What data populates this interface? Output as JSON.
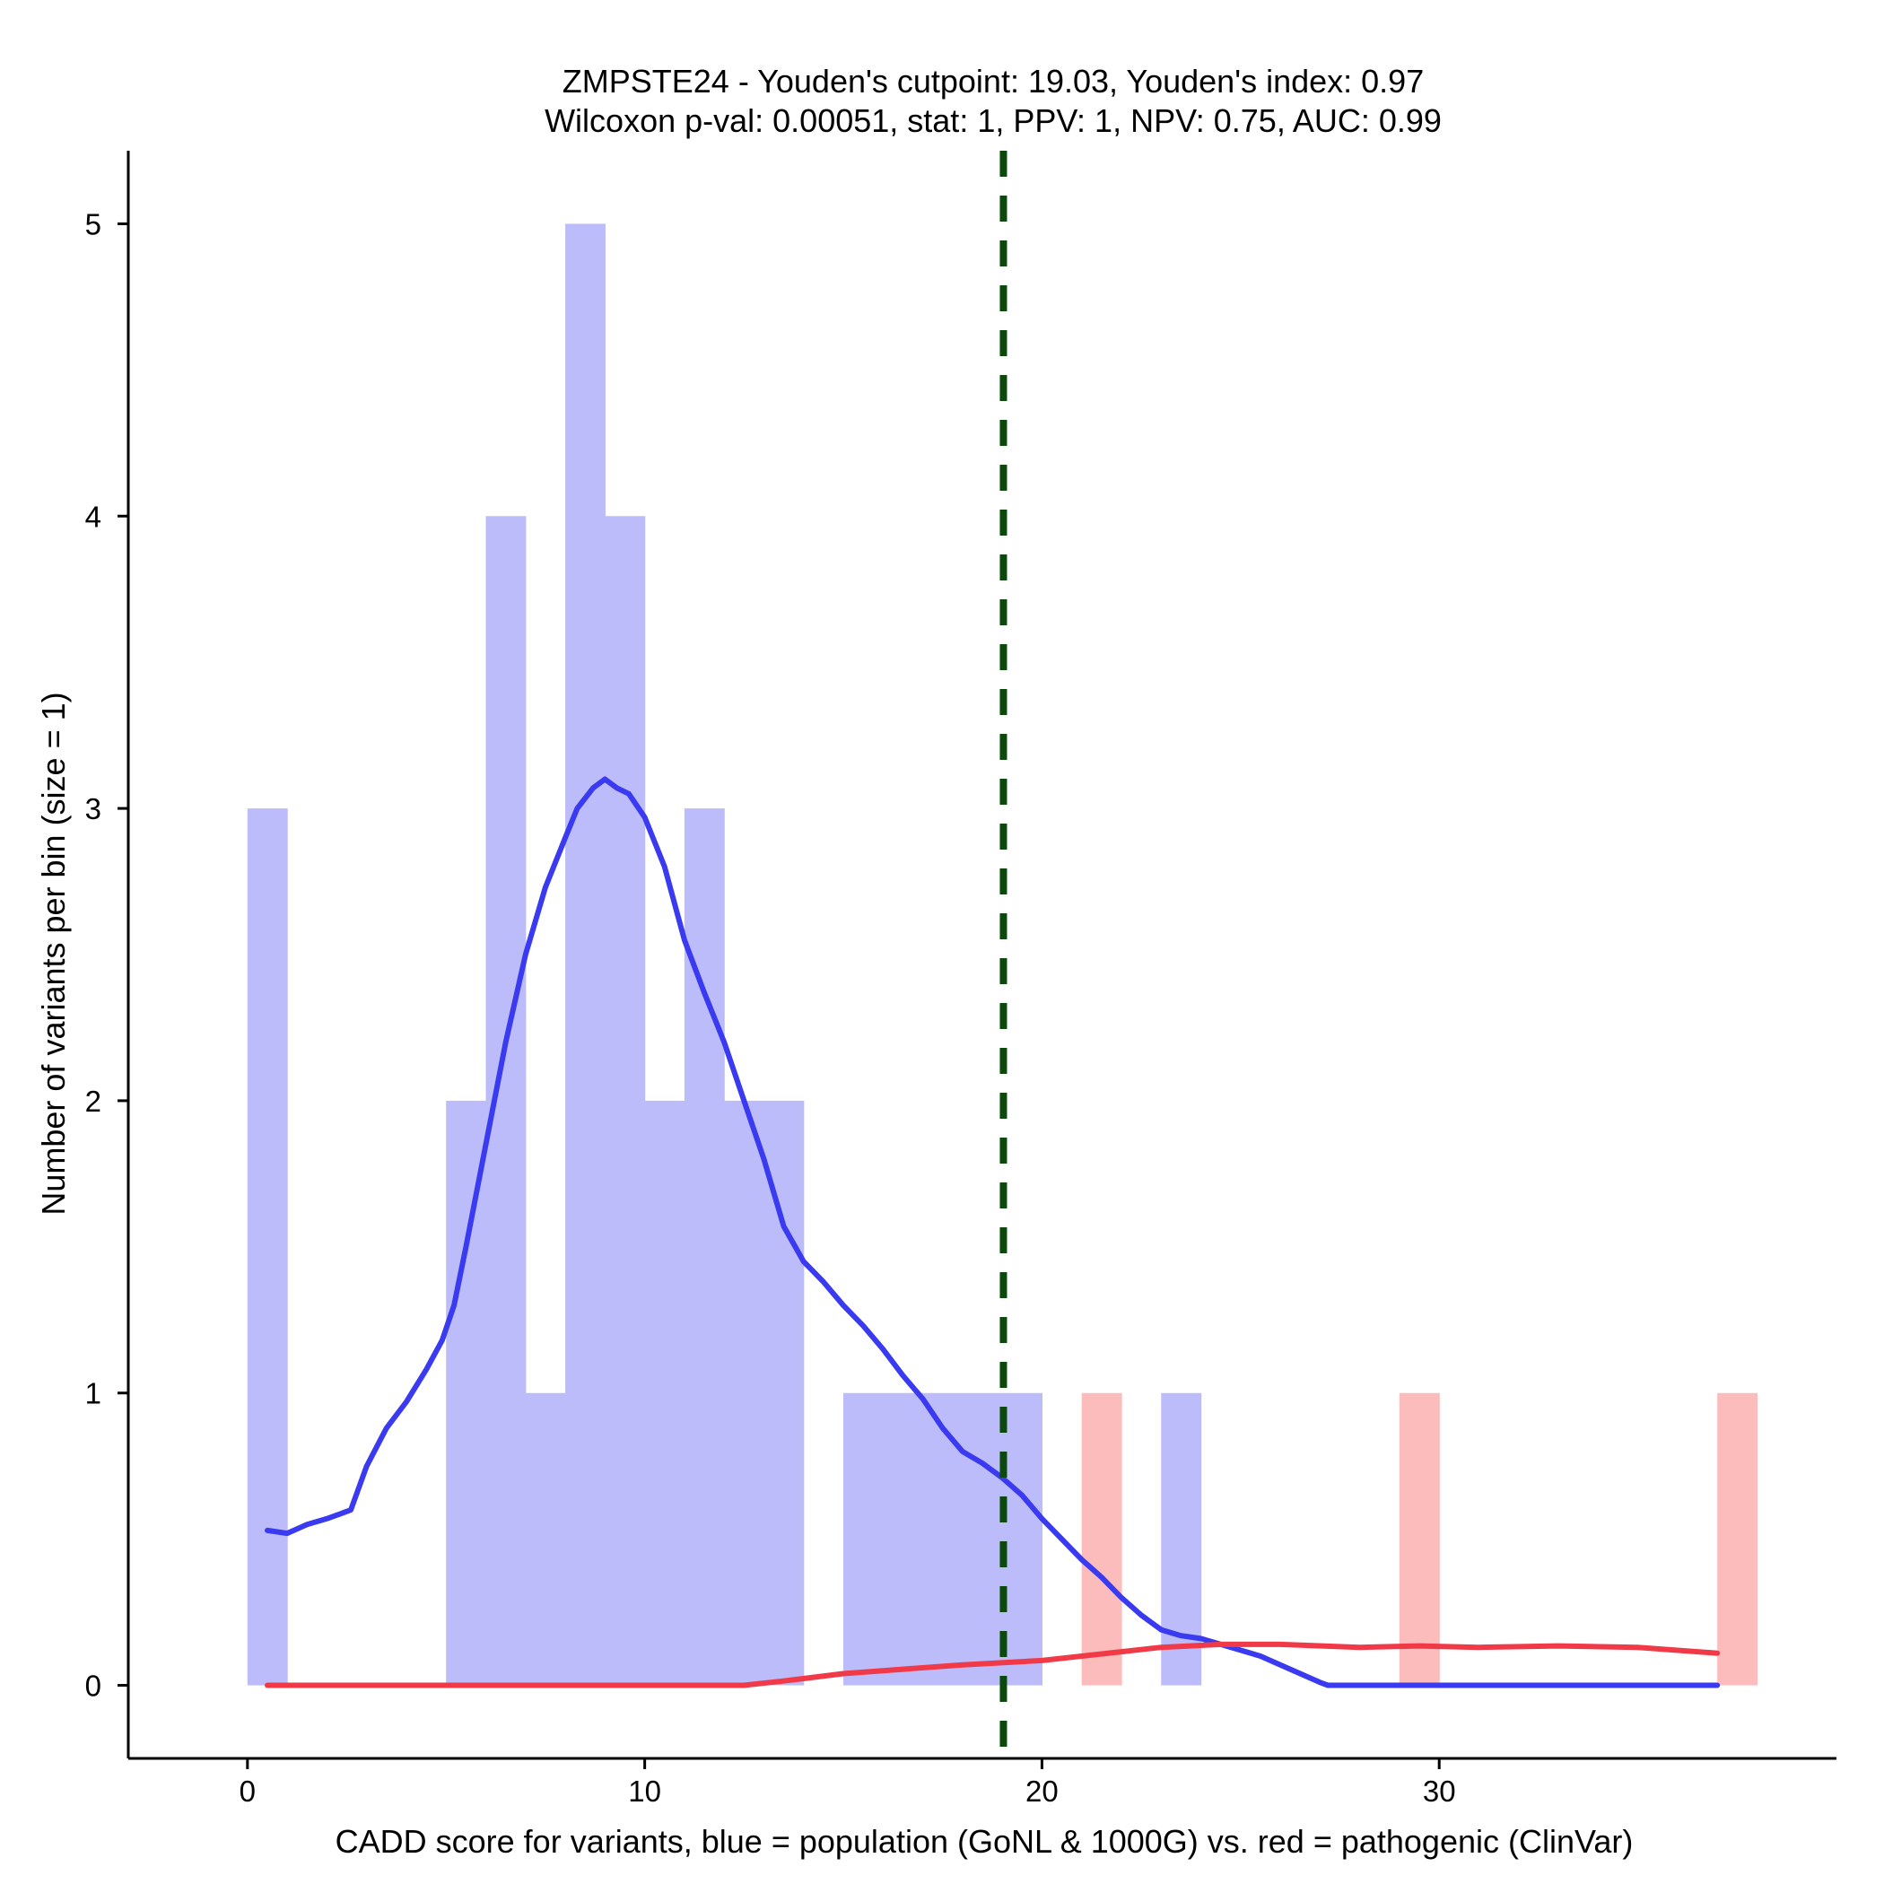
{
  "chart_data": {
    "type": "bar",
    "title_line1": "ZMPSTE24 - Youden's cutpoint: 19.03, Youden's index: 0.97",
    "title_line2": "Wilcoxon p-val: 0.00051, stat: 1, PPV: 1, NPV: 0.75, AUC: 0.99",
    "xlabel": "CADD score for variants, blue = population (GoNL & 1000G) vs. red = pathogenic (ClinVar)",
    "ylabel": "Number of variants per bin (size = 1)",
    "xlim": [
      -3,
      40
    ],
    "ylim": [
      -0.25,
      5.25
    ],
    "x_ticks": [
      0,
      10,
      20,
      30
    ],
    "x_tick_labels": [
      "0",
      "10",
      "20",
      "30"
    ],
    "y_ticks": [
      0,
      1,
      2,
      3,
      4,
      5
    ],
    "y_tick_labels": [
      "0",
      "1",
      "2",
      "3",
      "4",
      "5"
    ],
    "bin_width": 1,
    "colors": {
      "population_bar": "#bcbcfb",
      "pathogenic_bar": "#fcbcbc",
      "population_curve": "#3a3af0",
      "pathogenic_curve": "#f03a48",
      "cutpoint": "#0b4a0b"
    },
    "series": [
      {
        "name": "population",
        "bins": [
          {
            "start": 0,
            "count": 3
          },
          {
            "start": 5,
            "count": 2
          },
          {
            "start": 6,
            "count": 4
          },
          {
            "start": 7,
            "count": 1
          },
          {
            "start": 8,
            "count": 5
          },
          {
            "start": 9,
            "count": 4
          },
          {
            "start": 10,
            "count": 2
          },
          {
            "start": 11,
            "count": 3
          },
          {
            "start": 12,
            "count": 2
          },
          {
            "start": 13,
            "count": 2
          },
          {
            "start": 15,
            "count": 1
          },
          {
            "start": 16,
            "count": 1
          },
          {
            "start": 17,
            "count": 1
          },
          {
            "start": 18,
            "count": 1
          },
          {
            "start": 19,
            "count": 1
          },
          {
            "start": 23,
            "count": 1
          }
        ]
      },
      {
        "name": "pathogenic",
        "bins": [
          {
            "start": 21,
            "count": 1
          },
          {
            "start": 29,
            "count": 1
          },
          {
            "start": 37,
            "count": 1
          }
        ]
      }
    ],
    "density_curves": [
      {
        "name": "population",
        "points": [
          [
            0.5,
            0.53
          ],
          [
            1.0,
            0.52
          ],
          [
            1.5,
            0.55
          ],
          [
            2.0,
            0.57
          ],
          [
            2.6,
            0.6
          ],
          [
            3.0,
            0.75
          ],
          [
            3.5,
            0.88
          ],
          [
            4.0,
            0.97
          ],
          [
            4.5,
            1.08
          ],
          [
            4.9,
            1.18
          ],
          [
            5.2,
            1.3
          ],
          [
            5.5,
            1.5
          ],
          [
            6.0,
            1.85
          ],
          [
            6.5,
            2.2
          ],
          [
            7.0,
            2.5
          ],
          [
            7.5,
            2.73
          ],
          [
            8.0,
            2.9
          ],
          [
            8.3,
            3.0
          ],
          [
            8.7,
            3.07
          ],
          [
            9.0,
            3.1
          ],
          [
            9.3,
            3.07
          ],
          [
            9.6,
            3.05
          ],
          [
            10.0,
            2.97
          ],
          [
            10.5,
            2.8
          ],
          [
            11.0,
            2.55
          ],
          [
            11.5,
            2.37
          ],
          [
            12.0,
            2.2
          ],
          [
            12.5,
            2.0
          ],
          [
            13.0,
            1.8
          ],
          [
            13.5,
            1.57
          ],
          [
            14.0,
            1.45
          ],
          [
            14.5,
            1.38
          ],
          [
            15.0,
            1.3
          ],
          [
            15.5,
            1.23
          ],
          [
            16.0,
            1.15
          ],
          [
            16.5,
            1.06
          ],
          [
            17.0,
            0.98
          ],
          [
            17.5,
            0.88
          ],
          [
            18.0,
            0.8
          ],
          [
            18.5,
            0.76
          ],
          [
            19.0,
            0.71
          ],
          [
            19.5,
            0.65
          ],
          [
            20.0,
            0.57
          ],
          [
            20.5,
            0.5
          ],
          [
            21.0,
            0.43
          ],
          [
            21.5,
            0.37
          ],
          [
            22.0,
            0.3
          ],
          [
            22.5,
            0.24
          ],
          [
            23.0,
            0.19
          ],
          [
            23.5,
            0.17
          ],
          [
            24.0,
            0.16
          ],
          [
            24.5,
            0.14
          ],
          [
            25.0,
            0.12
          ],
          [
            25.5,
            0.1
          ],
          [
            26.0,
            0.07
          ],
          [
            26.5,
            0.04
          ],
          [
            27.0,
            0.01
          ],
          [
            27.2,
            0.0
          ],
          [
            30.0,
            0.0
          ],
          [
            33.0,
            0.0
          ],
          [
            37.0,
            0.0
          ]
        ]
      },
      {
        "name": "pathogenic",
        "points": [
          [
            0.5,
            0.0
          ],
          [
            5.0,
            0.0
          ],
          [
            10.0,
            0.0
          ],
          [
            12.5,
            0.0
          ],
          [
            13.5,
            0.015
          ],
          [
            15.0,
            0.04
          ],
          [
            16.5,
            0.055
          ],
          [
            18.0,
            0.07
          ],
          [
            20.0,
            0.085
          ],
          [
            21.0,
            0.1
          ],
          [
            22.0,
            0.115
          ],
          [
            23.0,
            0.13
          ],
          [
            24.5,
            0.14
          ],
          [
            26.0,
            0.14
          ],
          [
            28.0,
            0.13
          ],
          [
            29.5,
            0.135
          ],
          [
            31.0,
            0.13
          ],
          [
            33.0,
            0.135
          ],
          [
            35.0,
            0.13
          ],
          [
            37.0,
            0.11
          ]
        ]
      }
    ],
    "cutpoint_x": 19.03
  }
}
